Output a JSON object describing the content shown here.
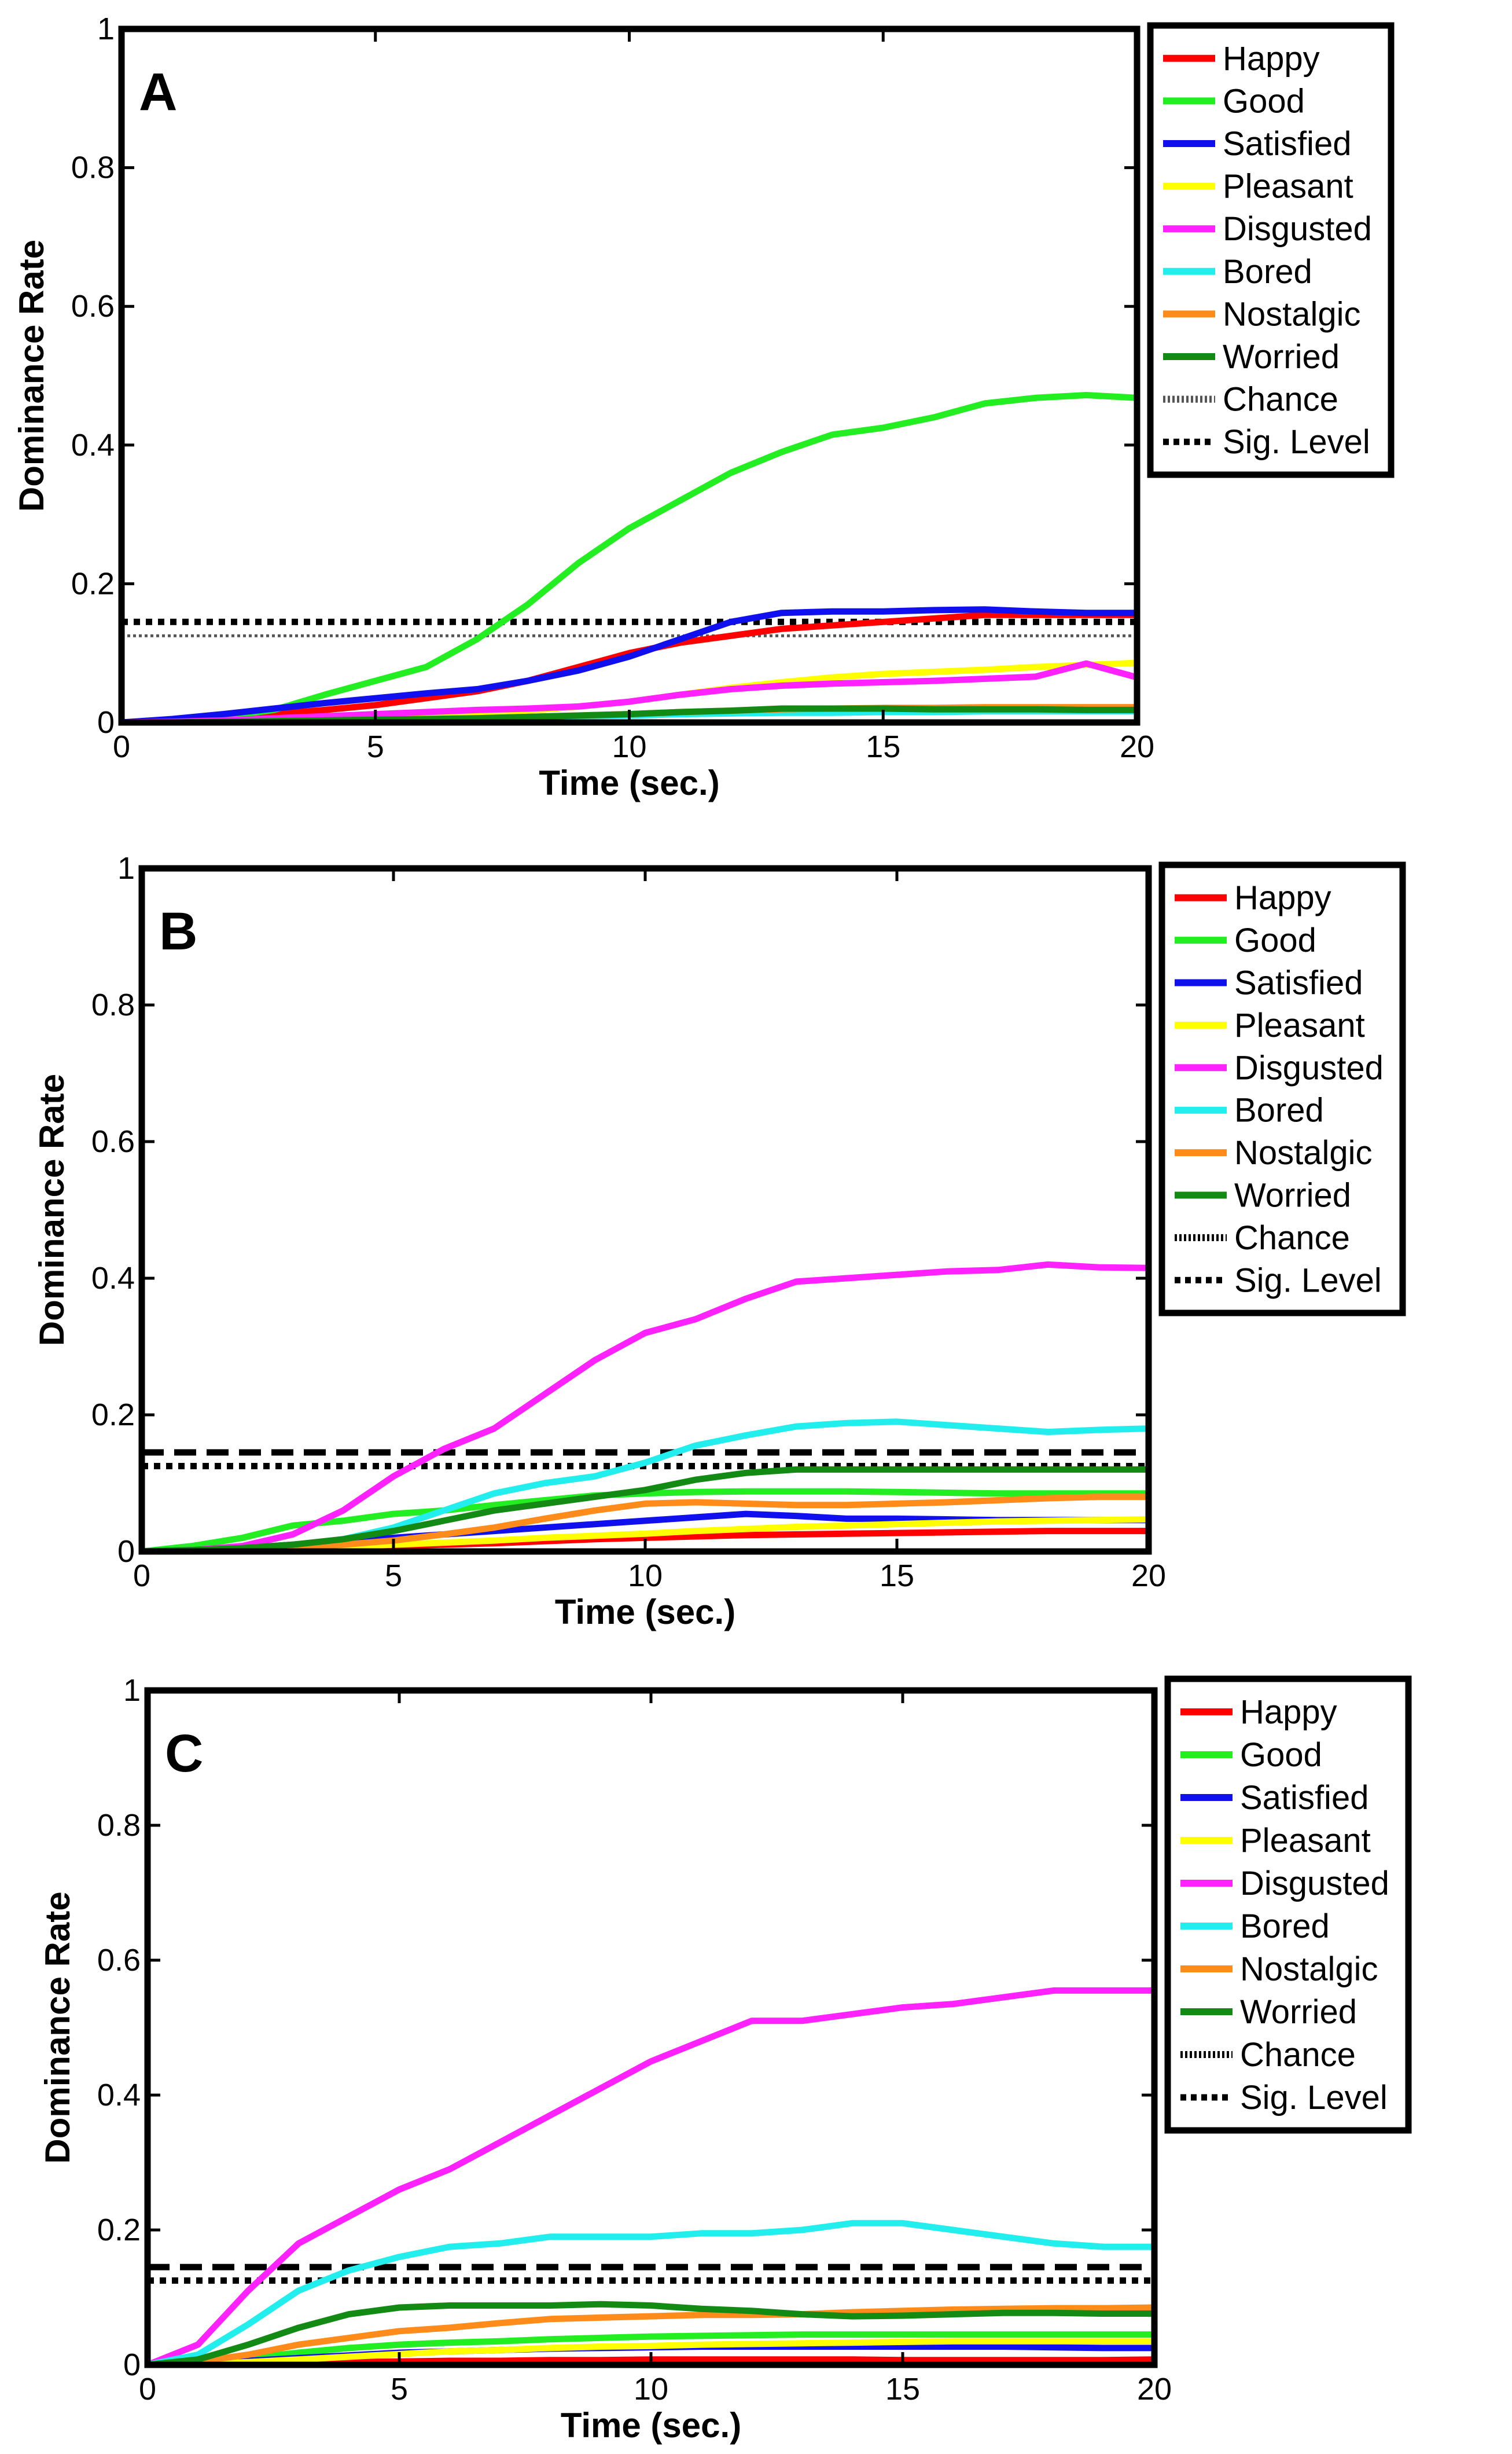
{
  "chart_data": [
    {
      "type": "line",
      "panel_label": "A",
      "xlabel": "Time (sec.)",
      "ylabel": "Dominance Rate",
      "xlim": [
        0,
        20
      ],
      "ylim": [
        0,
        1
      ],
      "xticks": [
        "0",
        "5",
        "10",
        "15",
        "20"
      ],
      "yticks": [
        "0",
        "0.2",
        "0.4",
        "0.6",
        "0.8",
        "1"
      ],
      "grid": false,
      "legend_position": "right",
      "x": [
        0,
        1,
        2,
        3,
        4,
        5,
        6,
        7,
        8,
        9,
        10,
        11,
        12,
        13,
        14,
        15,
        16,
        17,
        18,
        19,
        20
      ],
      "series": [
        {
          "name": "Happy",
          "color": "#ff0000",
          "values": [
            0,
            0.003,
            0.008,
            0.012,
            0.018,
            0.025,
            0.035,
            0.045,
            0.06,
            0.08,
            0.1,
            0.115,
            0.125,
            0.135,
            0.14,
            0.145,
            0.15,
            0.155,
            0.155,
            0.155,
            0.155
          ]
        },
        {
          "name": "Good",
          "color": "#22ee22",
          "values": [
            0,
            0.003,
            0.008,
            0.018,
            0.04,
            0.06,
            0.08,
            0.12,
            0.17,
            0.23,
            0.28,
            0.32,
            0.36,
            0.39,
            0.415,
            0.425,
            0.44,
            0.46,
            0.468,
            0.472,
            0.468
          ]
        },
        {
          "name": "Satisfied",
          "color": "#1010ee",
          "values": [
            0,
            0.005,
            0.012,
            0.02,
            0.028,
            0.035,
            0.042,
            0.048,
            0.06,
            0.075,
            0.095,
            0.12,
            0.145,
            0.158,
            0.16,
            0.16,
            0.162,
            0.163,
            0.16,
            0.158,
            0.158
          ]
        },
        {
          "name": "Pleasant",
          "color": "#ffff00",
          "values": [
            0,
            0,
            0.001,
            0.002,
            0.004,
            0.006,
            0.009,
            0.012,
            0.017,
            0.023,
            0.03,
            0.04,
            0.05,
            0.058,
            0.065,
            0.07,
            0.073,
            0.076,
            0.08,
            0.083,
            0.086
          ]
        },
        {
          "name": "Disgusted",
          "color": "#ff22ff",
          "values": [
            0,
            0.001,
            0.003,
            0.006,
            0.009,
            0.012,
            0.015,
            0.018,
            0.02,
            0.023,
            0.03,
            0.04,
            0.048,
            0.053,
            0.056,
            0.058,
            0.06,
            0.063,
            0.066,
            0.085,
            0.065
          ]
        },
        {
          "name": "Bored",
          "color": "#22eeee",
          "values": [
            0,
            0,
            0,
            0.001,
            0.002,
            0.003,
            0.004,
            0.006,
            0.008,
            0.009,
            0.01,
            0.012,
            0.013,
            0.014,
            0.014,
            0.015,
            0.015,
            0.016,
            0.016,
            0.016,
            0.016
          ]
        },
        {
          "name": "Nostalgic",
          "color": "#ff8c1a",
          "values": [
            0,
            0,
            0,
            0.001,
            0.002,
            0.003,
            0.004,
            0.006,
            0.008,
            0.01,
            0.012,
            0.015,
            0.017,
            0.019,
            0.02,
            0.021,
            0.021,
            0.022,
            0.022,
            0.022,
            0.022
          ]
        },
        {
          "name": "Worried",
          "color": "#138a13",
          "values": [
            0,
            0,
            0.001,
            0.002,
            0.003,
            0.004,
            0.005,
            0.006,
            0.008,
            0.01,
            0.012,
            0.015,
            0.017,
            0.02,
            0.02,
            0.02,
            0.019,
            0.019,
            0.019,
            0.018,
            0.018
          ]
        }
      ],
      "reference_lines": [
        {
          "name": "Chance",
          "y": 0.125,
          "style": "dotted-thin",
          "color": "#555555"
        },
        {
          "name": "Sig. Level",
          "y": 0.145,
          "style": "dotted",
          "color": "#000000"
        }
      ],
      "legend_entries": [
        "Happy",
        "Good",
        "Satisfied",
        "Pleasant",
        "Disgusted",
        "Bored",
        "Nostalgic",
        "Worried",
        "Chance",
        "Sig. Level"
      ]
    },
    {
      "type": "line",
      "panel_label": "B",
      "xlabel": "Time (sec.)",
      "ylabel": "Dominance Rate",
      "xlim": [
        0,
        20
      ],
      "ylim": [
        0,
        1
      ],
      "xticks": [
        "0",
        "5",
        "10",
        "15",
        "20"
      ],
      "yticks": [
        "0",
        "0.2",
        "0.4",
        "0.6",
        "0.8",
        "1"
      ],
      "grid": false,
      "legend_position": "right",
      "x": [
        0,
        1,
        2,
        3,
        4,
        5,
        6,
        7,
        8,
        9,
        10,
        11,
        12,
        13,
        14,
        15,
        16,
        17,
        18,
        19,
        20
      ],
      "series": [
        {
          "name": "Happy",
          "color": "#ff0000",
          "values": [
            0,
            0.001,
            0.002,
            0.004,
            0.006,
            0.008,
            0.01,
            0.012,
            0.015,
            0.018,
            0.02,
            0.022,
            0.024,
            0.025,
            0.026,
            0.027,
            0.028,
            0.029,
            0.03,
            0.03,
            0.03
          ]
        },
        {
          "name": "Good",
          "color": "#22ee22",
          "values": [
            0,
            0.008,
            0.02,
            0.038,
            0.045,
            0.055,
            0.06,
            0.068,
            0.075,
            0.082,
            0.085,
            0.087,
            0.088,
            0.088,
            0.088,
            0.087,
            0.086,
            0.085,
            0.085,
            0.085,
            0.085
          ]
        },
        {
          "name": "Satisfied",
          "color": "#1010ee",
          "values": [
            0,
            0.002,
            0.005,
            0.01,
            0.015,
            0.02,
            0.025,
            0.03,
            0.035,
            0.04,
            0.045,
            0.05,
            0.055,
            0.052,
            0.048,
            0.048,
            0.047,
            0.046,
            0.046,
            0.046,
            0.046
          ]
        },
        {
          "name": "Pleasant",
          "color": "#ffff00",
          "values": [
            0,
            0.001,
            0.002,
            0.004,
            0.007,
            0.01,
            0.013,
            0.016,
            0.02,
            0.023,
            0.026,
            0.03,
            0.033,
            0.036,
            0.038,
            0.04,
            0.042,
            0.044,
            0.045,
            0.046,
            0.047
          ]
        },
        {
          "name": "Disgusted",
          "color": "#ff22ff",
          "values": [
            0,
            0.002,
            0.008,
            0.025,
            0.06,
            0.11,
            0.15,
            0.18,
            0.23,
            0.28,
            0.32,
            0.34,
            0.37,
            0.395,
            0.4,
            0.405,
            0.41,
            0.412,
            0.42,
            0.416,
            0.415
          ]
        },
        {
          "name": "Bored",
          "color": "#22eeee",
          "values": [
            0,
            0.001,
            0.003,
            0.008,
            0.018,
            0.035,
            0.06,
            0.085,
            0.1,
            0.11,
            0.13,
            0.155,
            0.17,
            0.183,
            0.188,
            0.19,
            0.185,
            0.18,
            0.175,
            0.178,
            0.18
          ]
        },
        {
          "name": "Nostalgic",
          "color": "#ff8c1a",
          "values": [
            0,
            0.001,
            0.003,
            0.006,
            0.01,
            0.016,
            0.025,
            0.035,
            0.048,
            0.06,
            0.07,
            0.072,
            0.07,
            0.068,
            0.068,
            0.07,
            0.072,
            0.075,
            0.078,
            0.08,
            0.08
          ]
        },
        {
          "name": "Worried",
          "color": "#138a13",
          "values": [
            0,
            0.002,
            0.005,
            0.01,
            0.018,
            0.03,
            0.045,
            0.06,
            0.07,
            0.08,
            0.09,
            0.105,
            0.115,
            0.12,
            0.12,
            0.12,
            0.12,
            0.12,
            0.12,
            0.12,
            0.12
          ]
        }
      ],
      "reference_lines": [
        {
          "name": "Chance",
          "y": 0.125,
          "style": "dotted",
          "color": "#000000"
        },
        {
          "name": "Sig. Level",
          "y": 0.145,
          "style": "dashed",
          "color": "#000000"
        }
      ],
      "legend_entries": [
        "Happy",
        "Good",
        "Satisfied",
        "Pleasant",
        "Disgusted",
        "Bored",
        "Nostalgic",
        "Worried",
        "Chance",
        "Sig. Level"
      ]
    },
    {
      "type": "line",
      "panel_label": "C",
      "xlabel": "Time (sec.)",
      "ylabel": "Dominance Rate",
      "xlim": [
        0,
        20
      ],
      "ylim": [
        0,
        1
      ],
      "xticks": [
        "0",
        "5",
        "10",
        "15",
        "20"
      ],
      "yticks": [
        "0",
        "0.2",
        "0.4",
        "0.6",
        "0.8",
        "1"
      ],
      "grid": false,
      "legend_position": "right",
      "x": [
        0,
        1,
        2,
        3,
        4,
        5,
        6,
        7,
        8,
        9,
        10,
        11,
        12,
        13,
        14,
        15,
        16,
        17,
        18,
        19,
        20
      ],
      "series": [
        {
          "name": "Happy",
          "color": "#ff0000",
          "values": [
            0,
            0.001,
            0.002,
            0.003,
            0.004,
            0.005,
            0.006,
            0.006,
            0.007,
            0.007,
            0.008,
            0.008,
            0.008,
            0.008,
            0.008,
            0.007,
            0.007,
            0.007,
            0.007,
            0.007,
            0.008
          ]
        },
        {
          "name": "Good",
          "color": "#22ee22",
          "values": [
            0,
            0.003,
            0.01,
            0.018,
            0.025,
            0.03,
            0.033,
            0.035,
            0.038,
            0.04,
            0.042,
            0.043,
            0.044,
            0.045,
            0.045,
            0.045,
            0.045,
            0.045,
            0.045,
            0.045,
            0.045
          ]
        },
        {
          "name": "Satisfied",
          "color": "#1010ee",
          "values": [
            0,
            0.002,
            0.006,
            0.01,
            0.014,
            0.018,
            0.02,
            0.022,
            0.024,
            0.025,
            0.026,
            0.027,
            0.027,
            0.027,
            0.027,
            0.027,
            0.027,
            0.027,
            0.026,
            0.025,
            0.025
          ]
        },
        {
          "name": "Pleasant",
          "color": "#ffff00",
          "values": [
            0,
            0.001,
            0.004,
            0.008,
            0.012,
            0.016,
            0.02,
            0.022,
            0.025,
            0.027,
            0.028,
            0.03,
            0.031,
            0.032,
            0.033,
            0.034,
            0.035,
            0.035,
            0.035,
            0.035,
            0.035
          ]
        },
        {
          "name": "Disgusted",
          "color": "#ff22ff",
          "values": [
            0,
            0.03,
            0.11,
            0.18,
            0.22,
            0.26,
            0.29,
            0.33,
            0.37,
            0.41,
            0.45,
            0.48,
            0.51,
            0.51,
            0.52,
            0.53,
            0.535,
            0.545,
            0.555,
            0.555,
            0.555
          ]
        },
        {
          "name": "Bored",
          "color": "#22eeee",
          "values": [
            0,
            0.015,
            0.06,
            0.11,
            0.14,
            0.16,
            0.175,
            0.18,
            0.19,
            0.19,
            0.19,
            0.195,
            0.195,
            0.2,
            0.21,
            0.21,
            0.2,
            0.19,
            0.18,
            0.175,
            0.175
          ]
        },
        {
          "name": "Nostalgic",
          "color": "#ff8c1a",
          "values": [
            0,
            0.005,
            0.015,
            0.03,
            0.04,
            0.05,
            0.055,
            0.062,
            0.068,
            0.07,
            0.072,
            0.074,
            0.074,
            0.075,
            0.078,
            0.08,
            0.082,
            0.083,
            0.084,
            0.084,
            0.085
          ]
        },
        {
          "name": "Worried",
          "color": "#138a13",
          "values": [
            0,
            0.008,
            0.03,
            0.055,
            0.075,
            0.085,
            0.088,
            0.088,
            0.088,
            0.09,
            0.088,
            0.083,
            0.08,
            0.075,
            0.072,
            0.073,
            0.075,
            0.077,
            0.077,
            0.076,
            0.076
          ]
        }
      ],
      "reference_lines": [
        {
          "name": "Chance",
          "y": 0.125,
          "style": "dotted",
          "color": "#000000"
        },
        {
          "name": "Sig. Level",
          "y": 0.145,
          "style": "dashed",
          "color": "#000000"
        }
      ],
      "legend_entries": [
        "Happy",
        "Good",
        "Satisfied",
        "Pleasant",
        "Disgusted",
        "Bored",
        "Nostalgic",
        "Worried",
        "Chance",
        "Sig. Level"
      ]
    }
  ]
}
